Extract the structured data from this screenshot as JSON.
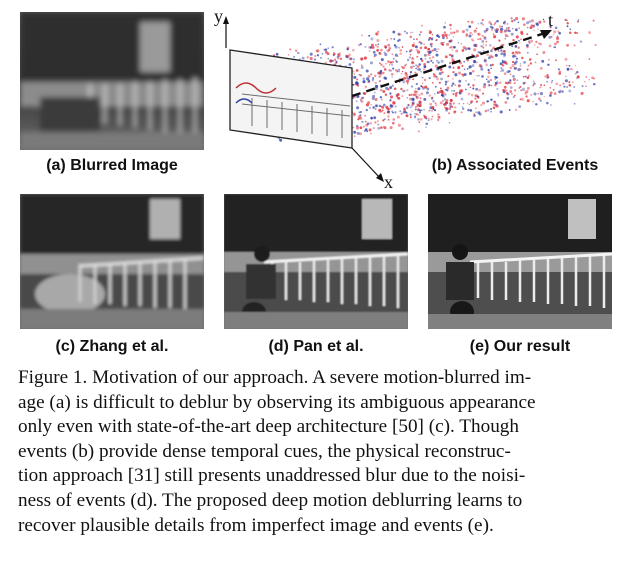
{
  "figure": {
    "panels": [
      {
        "label": "(a) Blurred Image"
      },
      {
        "label": "(b) Associated Events"
      },
      {
        "label": "(c) Zhang et al."
      },
      {
        "label": "(d) Pan et al."
      },
      {
        "label": "(e) Our result"
      }
    ],
    "axes": {
      "y": "y",
      "x": "x",
      "t": "t"
    },
    "event_colors": {
      "positive": "#e0303a",
      "negative": "#2a3aa8"
    }
  },
  "caption": {
    "lines": [
      "Figure 1. Motivation of our approach. A severe motion-blurred im-",
      "age (a) is difficult to deblur by observing its ambiguous appearance",
      "only even with state-of-the-art deep architecture [50] (c). Though",
      "events (b) provide dense temporal cues, the physical reconstruc-",
      "tion approach [31] still presents unaddressed blur due to the noisi-",
      "ness of events (d). The proposed deep motion deblurring learns to",
      "recover plausible details from imperfect image and events (e)."
    ]
  }
}
